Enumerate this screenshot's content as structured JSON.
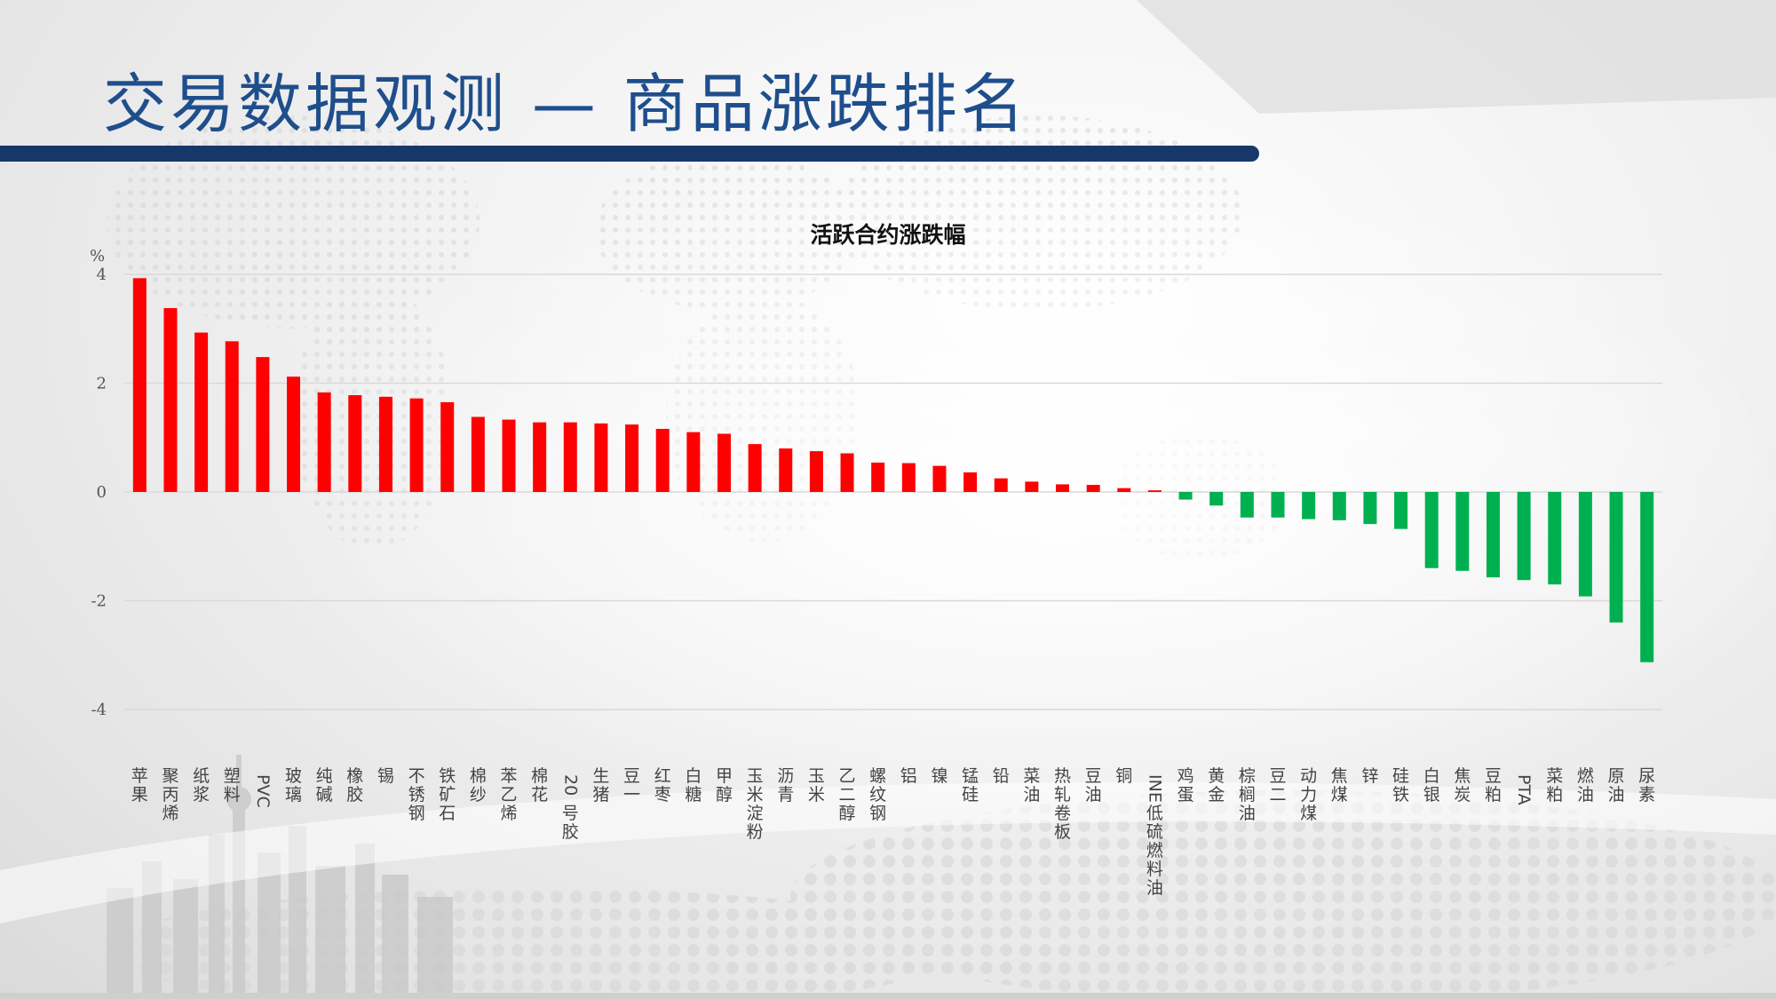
{
  "header": {
    "title": "交易数据观测 — 商品涨跌排名"
  },
  "colors": {
    "rise": "#ff0000",
    "fall": "#00b050",
    "title": "#1f4e8c",
    "title_bar": "#17376b",
    "grid": "#d9d9d9"
  },
  "chart_data": {
    "type": "bar",
    "title": "活跃合约涨跌幅",
    "ylabel": "%",
    "xlabel": "",
    "ylim": [
      -4,
      4
    ],
    "yticks": [
      4,
      2,
      0,
      -2,
      -4
    ],
    "grid": true,
    "legend": "none",
    "categories": [
      "苹果",
      "聚丙烯",
      "纸浆",
      "塑料",
      "PVC",
      "玻璃",
      "纯碱",
      "橡胶",
      "锡",
      "不锈钢",
      "铁矿石",
      "棉纱",
      "苯乙烯",
      "棉花",
      "20号胶",
      "生猪",
      "豆一",
      "红枣",
      "白糖",
      "甲醇",
      "玉米淀粉",
      "沥青",
      "玉米",
      "乙二醇",
      "螺纹钢",
      "铝",
      "镍",
      "锰硅",
      "铅",
      "菜油",
      "热轧卷板",
      "豆油",
      "铜",
      "INE低硫燃料油",
      "鸡蛋",
      "黄金",
      "棕榈油",
      "豆二",
      "动力煤",
      "焦煤",
      "锌",
      "硅铁",
      "白银",
      "焦炭",
      "豆粕",
      "PTA",
      "菜粕",
      "燃油",
      "原油",
      "尿素"
    ],
    "values": [
      3.93,
      3.38,
      2.93,
      2.77,
      2.48,
      2.12,
      1.83,
      1.78,
      1.75,
      1.72,
      1.65,
      1.38,
      1.33,
      1.28,
      1.28,
      1.26,
      1.24,
      1.16,
      1.1,
      1.07,
      0.88,
      0.8,
      0.75,
      0.71,
      0.54,
      0.53,
      0.48,
      0.36,
      0.25,
      0.19,
      0.14,
      0.13,
      0.07,
      0.03,
      -0.14,
      -0.25,
      -0.47,
      -0.47,
      -0.5,
      -0.52,
      -0.59,
      -0.68,
      -1.4,
      -1.45,
      -1.57,
      -1.62,
      -1.7,
      -1.92,
      -2.4,
      -3.13
    ]
  }
}
